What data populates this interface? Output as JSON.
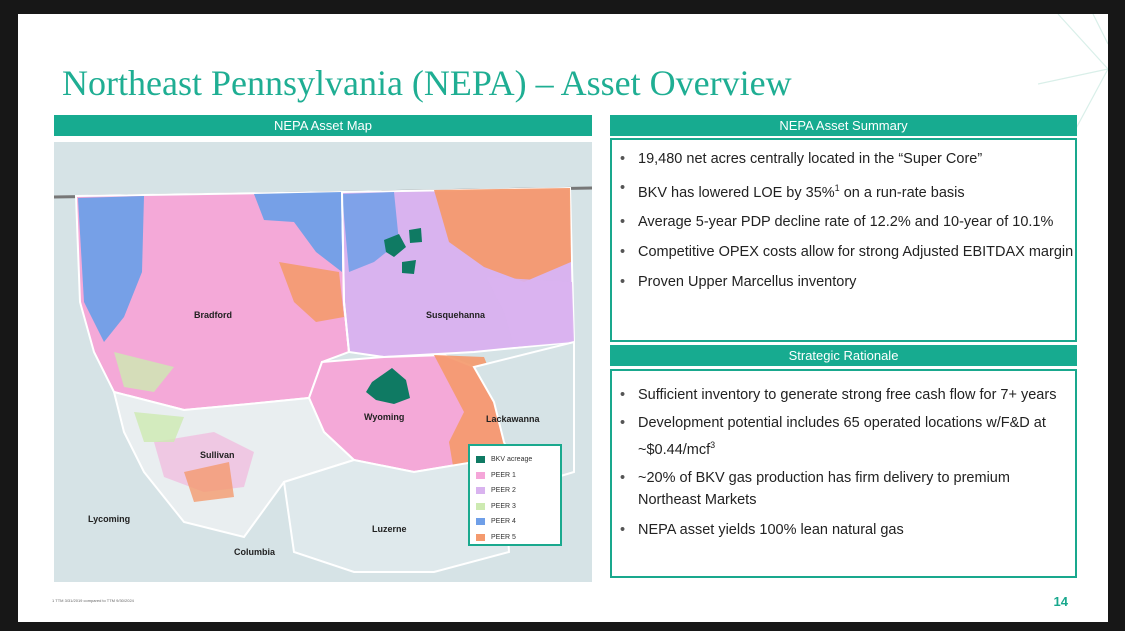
{
  "title": "Northeast Pennsylvania (NEPA) – Asset Overview",
  "map_header": "NEPA Asset Map",
  "summary_header": "NEPA Asset Summary",
  "rationale_header": "Strategic Rationale",
  "counties": {
    "bradford": "Bradford",
    "susquehanna": "Susquehanna",
    "wyoming": "Wyoming",
    "lackawanna": "Lackawanna",
    "sullivan": "Sullivan",
    "lycoming": "Lycoming",
    "luzerne": "Luzerne",
    "columbia": "Columbia"
  },
  "legend": [
    {
      "label": "BKV acreage",
      "color": "#0f7a63"
    },
    {
      "label": "PEER 1",
      "color": "#f5a6d9"
    },
    {
      "label": "PEER 2",
      "color": "#d9b3ef"
    },
    {
      "label": "PEER 3",
      "color": "#cdeab1"
    },
    {
      "label": "PEER 4",
      "color": "#6f9fe8"
    },
    {
      "label": "PEER 5",
      "color": "#f49a6e"
    }
  ],
  "summary_items": [
    {
      "text": "19,480 net acres centrally located in the “Super Core”"
    },
    {
      "text": "BKV has lowered LOE by 35%",
      "sup": "1",
      "tail": " on a run-rate basis"
    },
    {
      "text": "Average 5-year PDP decline rate of 12.2% and 10-year of 10.1%"
    },
    {
      "text": "Competitive OPEX costs allow for strong Adjusted EBITDAX margin"
    },
    {
      "text": "Proven Upper Marcellus inventory"
    }
  ],
  "rationale_items": [
    {
      "text": "Sufficient inventory to generate strong free cash flow for 7+ years"
    },
    {
      "text": "Development potential includes 65 operated locations w/F&D at ~$0.44/mcf",
      "sup": "3"
    },
    {
      "text": " ~20% of BKV gas production has firm delivery to premium Northeast Markets"
    },
    {
      "text": "NEPA asset yields 100% lean natural gas"
    }
  ],
  "footnote": "1 TTM 3/31/2019 compared to TTM 9/30/2024",
  "page_number": "14"
}
